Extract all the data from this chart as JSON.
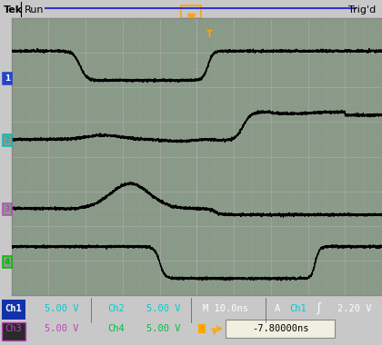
{
  "outer_bg": "#c8c8c8",
  "screen_bg": "#8a9a8a",
  "grid_color_major": "#aaaaaa",
  "grid_color_minor": "#999999",
  "waveform_color": "#111111",
  "header_text_left": "Tek  Run",
  "header_text_right": "Trig'd",
  "status_bg": "#2a2a2a",
  "noise_amplitude": 0.018,
  "ch1_color": "#2244cc",
  "ch2_color": "#00bbbb",
  "ch3_color": "#bb44bb",
  "ch4_color": "#00bb00",
  "ch1_scale": "5.00 V",
  "ch2_scale": "5.00 V",
  "ch3_scale": "5.00 V",
  "ch4_scale": "5.00 V",
  "time_scale": "M 10.0ns",
  "trig_level": "2.20 V",
  "cursor_val": "-7.80000ns"
}
